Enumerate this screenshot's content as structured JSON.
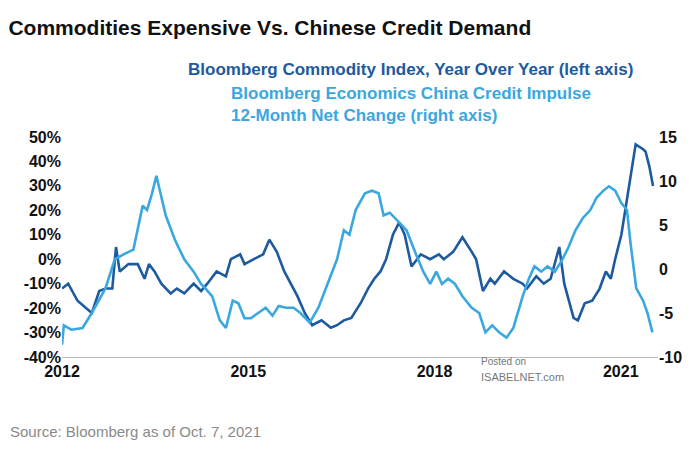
{
  "chart_data": {
    "type": "line",
    "title": "Commodities Expensive Vs. Chinese Credit Demand",
    "source": "Source: Bloomberg as of Oct. 7, 2021",
    "annotations": [
      "Posted on",
      "ISABELNET.com"
    ],
    "grid": false,
    "xlim": [
      2012,
      2021.6
    ],
    "xticks": [
      2012,
      2015,
      2018,
      2021
    ],
    "ylim": [
      -40,
      50
    ],
    "yticks": [
      {
        "value": -40,
        "label": "-40%"
      },
      {
        "value": -30,
        "label": "-30%"
      },
      {
        "value": -20,
        "label": "-20%"
      },
      {
        "value": -10,
        "label": "-10%"
      },
      {
        "value": 0,
        "label": "0%"
      },
      {
        "value": 10,
        "label": "10%"
      },
      {
        "value": 20,
        "label": "20%"
      },
      {
        "value": 30,
        "label": "30%"
      },
      {
        "value": 40,
        "label": "40%"
      },
      {
        "value": 50,
        "label": "50%"
      }
    ],
    "y2lim": [
      -10,
      15
    ],
    "y2ticks": [
      -10,
      -5,
      0,
      5,
      10,
      15
    ],
    "series": [
      {
        "name": "Bloomberg Commodity Index, Year Over Year (left axis)",
        "color": "#1d5a9e",
        "axis": "y",
        "x": [
          2012.0,
          2012.1,
          2012.25,
          2012.48,
          2012.6,
          2012.7,
          2012.81,
          2012.87,
          2012.93,
          2013.07,
          2013.22,
          2013.33,
          2013.4,
          2013.49,
          2013.6,
          2013.75,
          2013.85,
          2013.97,
          2014.12,
          2014.24,
          2014.34,
          2014.49,
          2014.64,
          2014.72,
          2014.87,
          2014.94,
          2015.09,
          2015.24,
          2015.34,
          2015.46,
          2015.58,
          2015.69,
          2015.79,
          2015.91,
          2016.03,
          2016.18,
          2016.33,
          2016.43,
          2016.54,
          2016.66,
          2016.81,
          2016.93,
          2017.03,
          2017.13,
          2017.22,
          2017.33,
          2017.43,
          2017.52,
          2017.63,
          2017.78,
          2017.93,
          2018.07,
          2018.15,
          2018.3,
          2018.45,
          2018.6,
          2018.67,
          2018.78,
          2018.9,
          2018.97,
          2019.12,
          2019.27,
          2019.42,
          2019.49,
          2019.64,
          2019.76,
          2019.87,
          2020.01,
          2020.09,
          2020.24,
          2020.31,
          2020.42,
          2020.54,
          2020.66,
          2020.76,
          2020.84,
          2020.91,
          2021.01,
          2021.13,
          2021.24,
          2021.36,
          2021.4,
          2021.46,
          2021.52
        ],
        "values": [
          -12,
          -10,
          -17,
          -22,
          -13,
          -12,
          -12,
          5,
          -5,
          -2,
          -2,
          -8,
          -2,
          -5,
          -10,
          -14,
          -12,
          -14,
          -10,
          -13,
          -10,
          -5,
          -7,
          0,
          2,
          -2,
          0,
          2,
          8,
          3,
          -5,
          -10,
          -15,
          -22,
          -27,
          -25,
          -28,
          -27,
          -25,
          -24,
          -18,
          -12,
          -8,
          -5,
          0,
          10,
          15,
          10,
          -3,
          2,
          0,
          2,
          0,
          3,
          9,
          3,
          0,
          -13,
          -8,
          -10,
          -5,
          -8,
          -10,
          -12,
          -7,
          -10,
          -8,
          5,
          -10,
          -24,
          -25,
          -18,
          -17,
          -12,
          -5,
          -8,
          0,
          10,
          30,
          47,
          45,
          44,
          38,
          30
        ]
      },
      {
        "name": "Bloomberg Economics China Credit Impulse\n12-Month Net Change (right axis)",
        "color": "#3aa7e0",
        "axis": "y2",
        "x": [
          2012.0,
          2012.03,
          2012.15,
          2012.33,
          2012.48,
          2012.63,
          2012.7,
          2012.85,
          2013.0,
          2013.15,
          2013.3,
          2013.37,
          2013.45,
          2013.52,
          2013.6,
          2013.67,
          2013.82,
          2013.97,
          2014.12,
          2014.24,
          2014.31,
          2014.42,
          2014.54,
          2014.64,
          2014.75,
          2014.84,
          2014.94,
          2015.04,
          2015.16,
          2015.28,
          2015.39,
          2015.49,
          2015.61,
          2015.73,
          2015.84,
          2015.99,
          2016.13,
          2016.28,
          2016.43,
          2016.54,
          2016.63,
          2016.73,
          2016.88,
          2016.99,
          2017.1,
          2017.18,
          2017.28,
          2017.43,
          2017.55,
          2017.7,
          2017.82,
          2017.93,
          2018.03,
          2018.12,
          2018.22,
          2018.33,
          2018.45,
          2018.6,
          2018.72,
          2018.82,
          2018.93,
          2019.04,
          2019.16,
          2019.27,
          2019.42,
          2019.52,
          2019.61,
          2019.72,
          2019.82,
          2019.94,
          2020.06,
          2020.16,
          2020.27,
          2020.39,
          2020.51,
          2020.61,
          2020.72,
          2020.81,
          2020.91,
          2021.01,
          2021.1,
          2021.16,
          2021.25,
          2021.36,
          2021.43,
          2021.51
        ],
        "values": [
          -8.6,
          -6.4,
          -6.9,
          -6.7,
          -5.0,
          -3.1,
          -2.2,
          1.1,
          1.7,
          2.2,
          7.2,
          6.7,
          8.6,
          10.6,
          8.1,
          6.1,
          3.3,
          1.1,
          -0.3,
          -1.7,
          -2.2,
          -3.1,
          -5.8,
          -6.7,
          -3.6,
          -3.9,
          -5.6,
          -5.6,
          -5.0,
          -4.4,
          -5.3,
          -4.2,
          -4.4,
          -4.4,
          -5.0,
          -6.1,
          -4.4,
          -1.7,
          1.1,
          4.4,
          3.9,
          6.7,
          8.6,
          8.9,
          8.6,
          6.1,
          6.4,
          5.3,
          4.4,
          1.7,
          -0.3,
          -1.7,
          -0.3,
          -1.7,
          -1.1,
          -1.7,
          -3.1,
          -4.4,
          -5.0,
          -7.2,
          -6.4,
          -7.2,
          -7.8,
          -6.7,
          -3.1,
          -1.1,
          0.3,
          -0.3,
          0.3,
          -0.3,
          1.1,
          2.5,
          4.4,
          5.8,
          6.7,
          8.1,
          8.9,
          9.4,
          8.9,
          7.5,
          6.7,
          2.8,
          -2.2,
          -3.6,
          -5.0,
          -7.2
        ]
      }
    ]
  }
}
